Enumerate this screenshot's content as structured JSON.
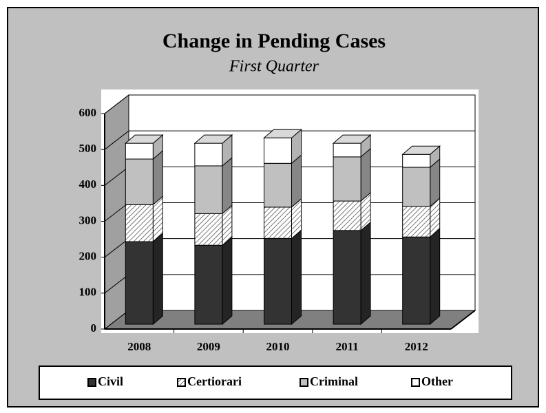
{
  "chart_data": {
    "type": "bar",
    "stacked": true,
    "title": "Change in Pending Cases",
    "subtitle": "First Quarter",
    "categories": [
      "2008",
      "2009",
      "2010",
      "2011",
      "2012"
    ],
    "series": [
      {
        "name": "Civil",
        "color": "#333333",
        "values": [
          230,
          220,
          239,
          261,
          243
        ]
      },
      {
        "name": "Certiorari",
        "color": "#ffffff",
        "pattern": "diagonal-hatch",
        "values": [
          103,
          88,
          87,
          82,
          85
        ]
      },
      {
        "name": "Criminal",
        "color": "#c0c0c0",
        "values": [
          127,
          133,
          122,
          123,
          109
        ]
      },
      {
        "name": "Other",
        "color": "#ffffff",
        "values": [
          44,
          63,
          71,
          38,
          36
        ]
      }
    ],
    "ylim": [
      0,
      600
    ],
    "yticks": [
      0,
      100,
      200,
      300,
      400,
      500,
      600
    ],
    "grid": true,
    "legend": "bottom"
  }
}
